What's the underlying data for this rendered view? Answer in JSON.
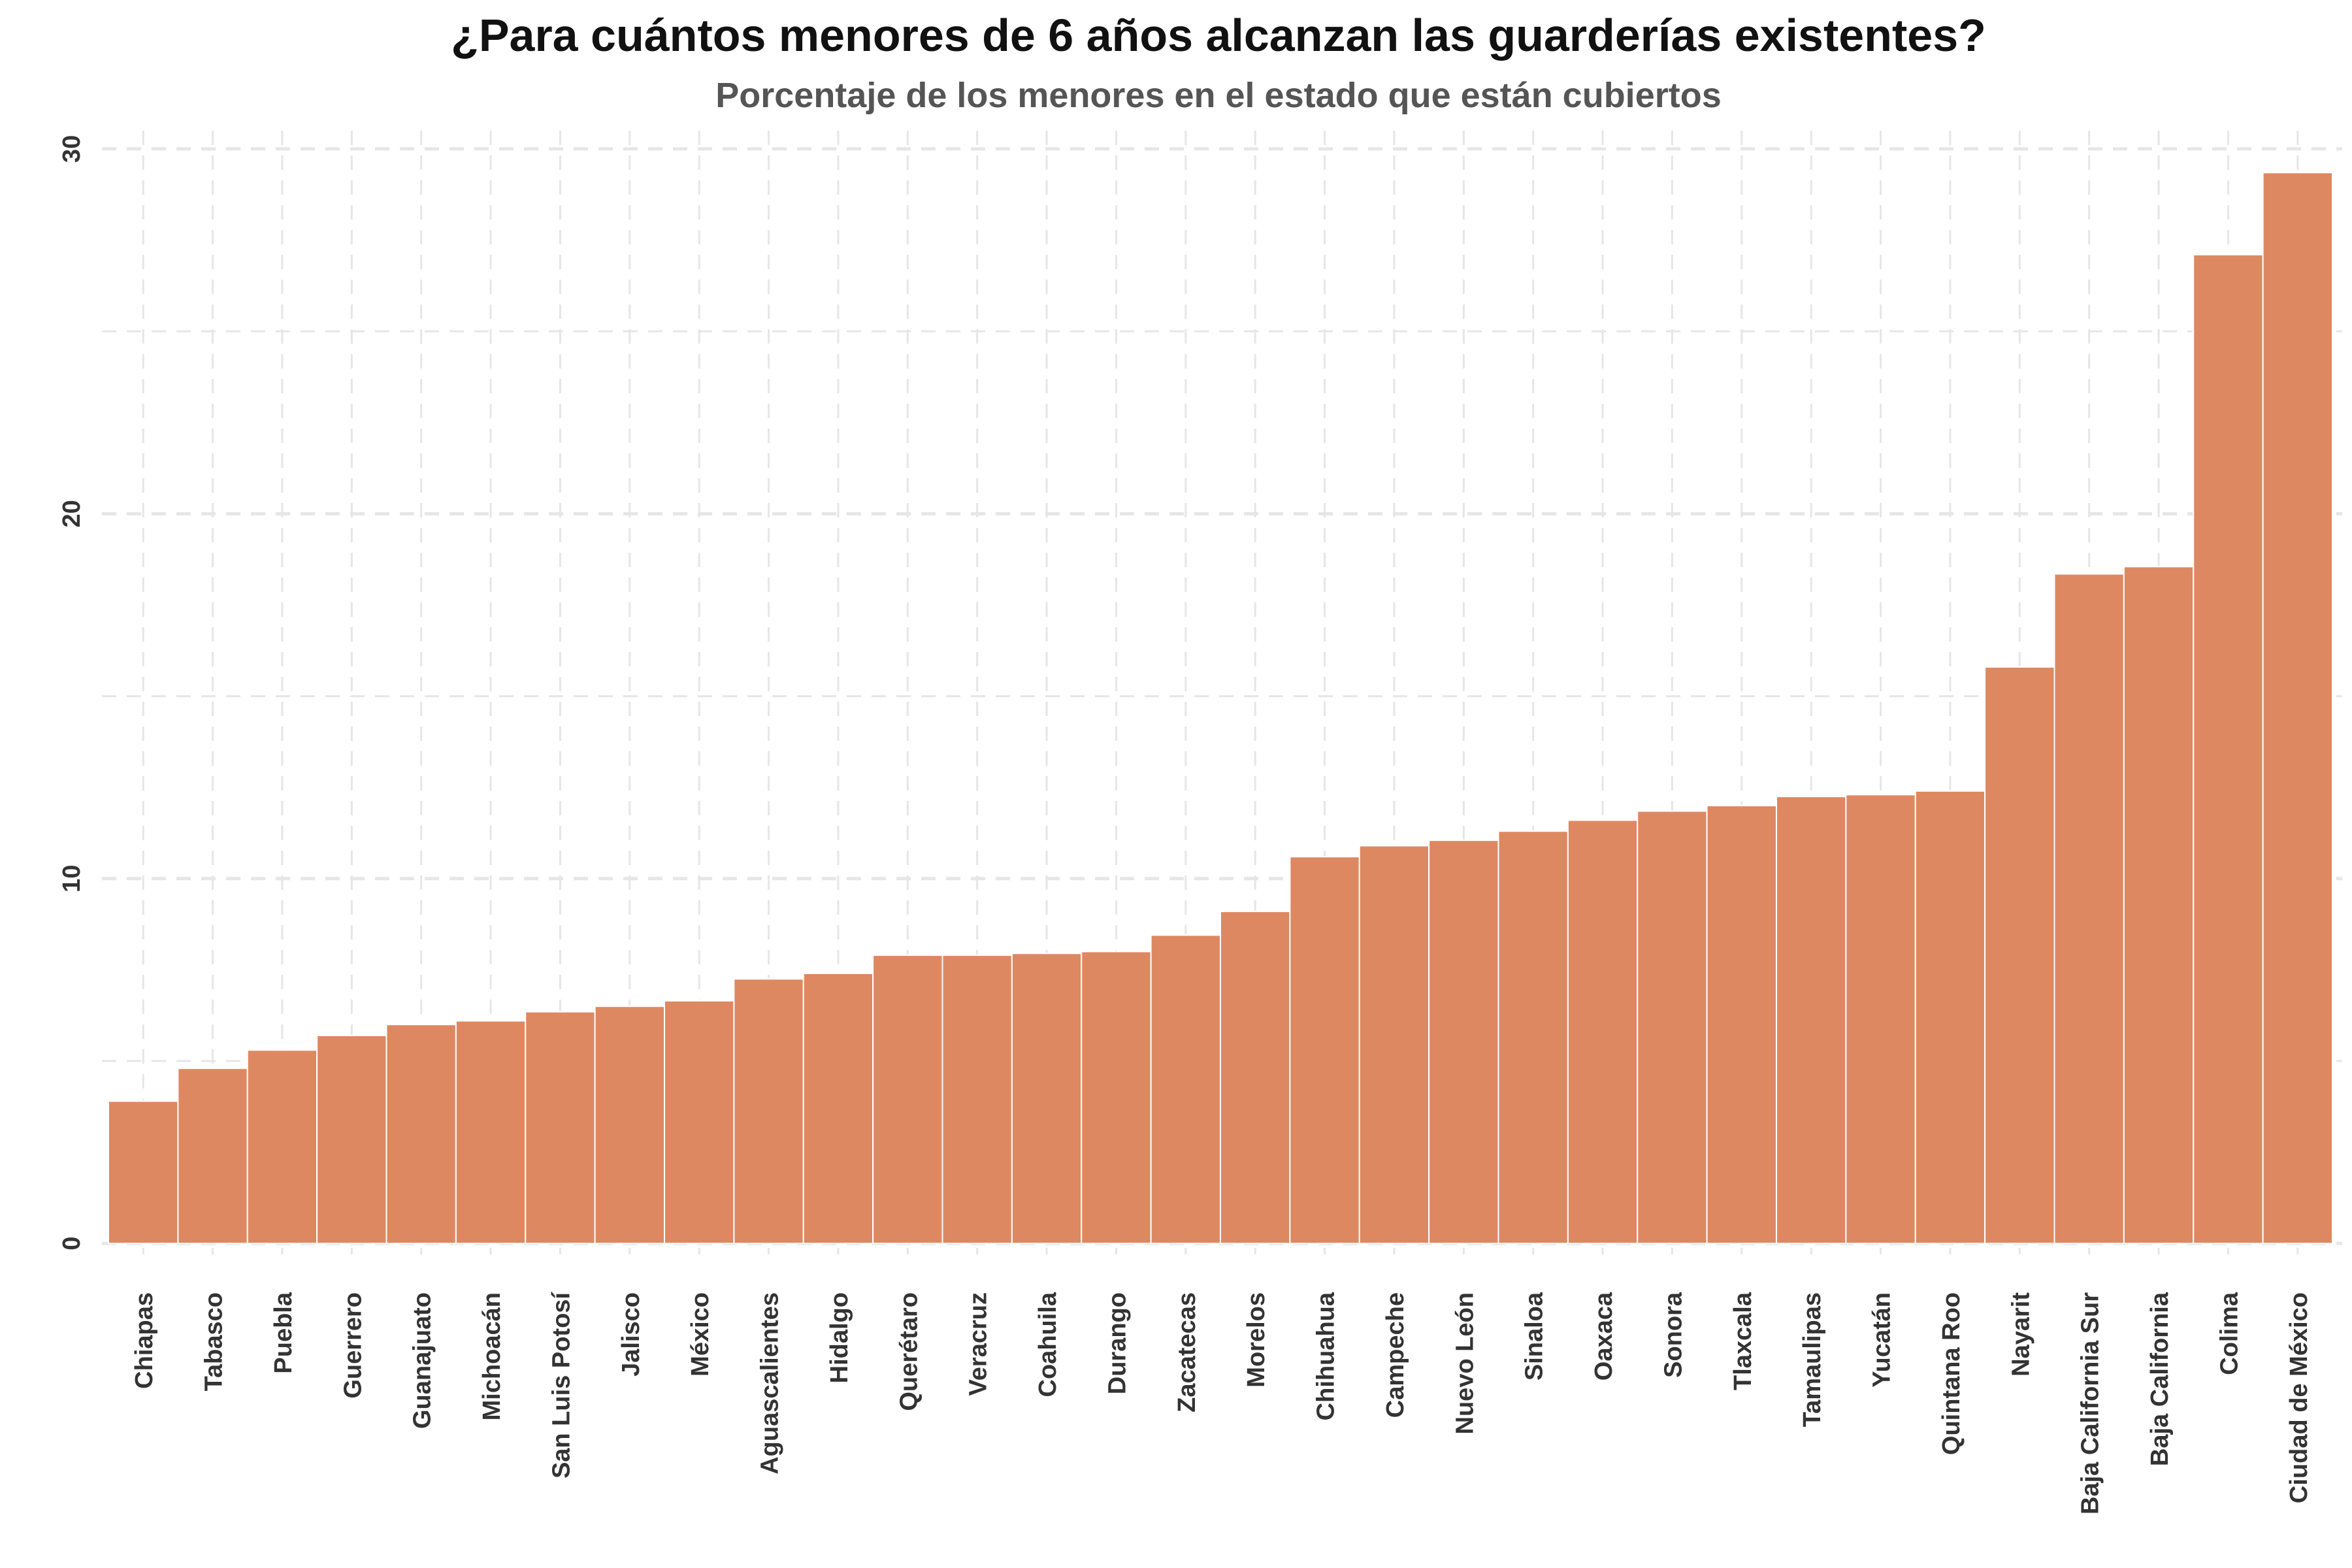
{
  "chart_data": {
    "type": "bar",
    "title": "¿Para cuántos menores de 6 años alcanzan las guarderías existentes?",
    "subtitle": "Porcentaje de los menores en el estado que están cubiertos",
    "xlabel": "",
    "ylabel": "",
    "ylim": [
      -0.3,
      30.5
    ],
    "yticks": [
      0,
      10,
      20,
      30
    ],
    "grid": true,
    "bar_color": "#de8861",
    "grid_color": "#e6e6e6",
    "categories": [
      "Chiapas",
      "Tabasco",
      "Puebla",
      "Guerrero",
      "Guanajuato",
      "Michoacán",
      "San Luis Potosí",
      "Jalisco",
      "México",
      "Aguascalientes",
      "Hidalgo",
      "Querétaro",
      "Veracruz",
      "Coahuila",
      "Durango",
      "Zacatecas",
      "Morelos",
      "Chihuahua",
      "Campeche",
      "Nuevo León",
      "Sinaloa",
      "Oaxaca",
      "Sonora",
      "Tlaxcala",
      "Tamaulipas",
      "Yucatán",
      "Quintana Roo",
      "Nayarit",
      "Baja California Sur",
      "Baja California",
      "Colima",
      "Ciudad de México"
    ],
    "values": [
      3.9,
      4.8,
      5.3,
      5.7,
      6.0,
      6.1,
      6.35,
      6.5,
      6.65,
      7.25,
      7.4,
      7.9,
      7.9,
      7.95,
      8.0,
      8.45,
      9.1,
      10.6,
      10.9,
      11.05,
      11.3,
      11.6,
      11.85,
      12.0,
      12.25,
      12.3,
      12.4,
      15.8,
      18.35,
      18.55,
      27.1,
      29.35
    ]
  }
}
